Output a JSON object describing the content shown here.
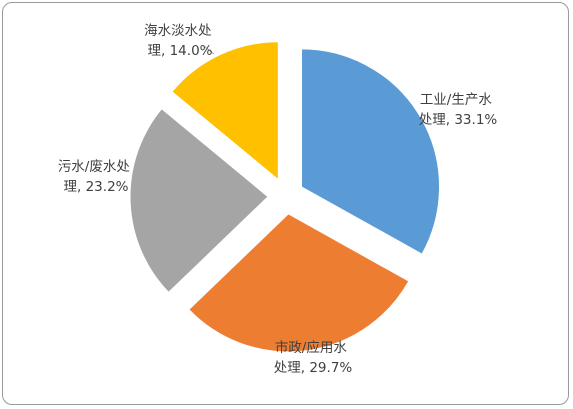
{
  "chart_data": {
    "type": "pie",
    "exploded": true,
    "legend": "none",
    "slices": [
      {
        "label_line1": "工业/生产水",
        "label_line2": "处理, 33.1%",
        "category": "工业/生产水处理",
        "value": 33.1,
        "color": "#5B9BD5"
      },
      {
        "label_line1": "市政/应用水",
        "label_line2": "处理, 29.7%",
        "category": "市政/应用水处理",
        "value": 29.7,
        "color": "#ED7D31"
      },
      {
        "label_line1": "污水/废水处",
        "label_line2": "理, 23.2%",
        "category": "污水/废水处理",
        "value": 23.2,
        "color": "#A5A5A5"
      },
      {
        "label_line1": "海水淡水处",
        "label_line2": "理, 14.0%",
        "category": "海水淡水处理",
        "value": 14.0,
        "color": "#FFC000"
      }
    ]
  }
}
